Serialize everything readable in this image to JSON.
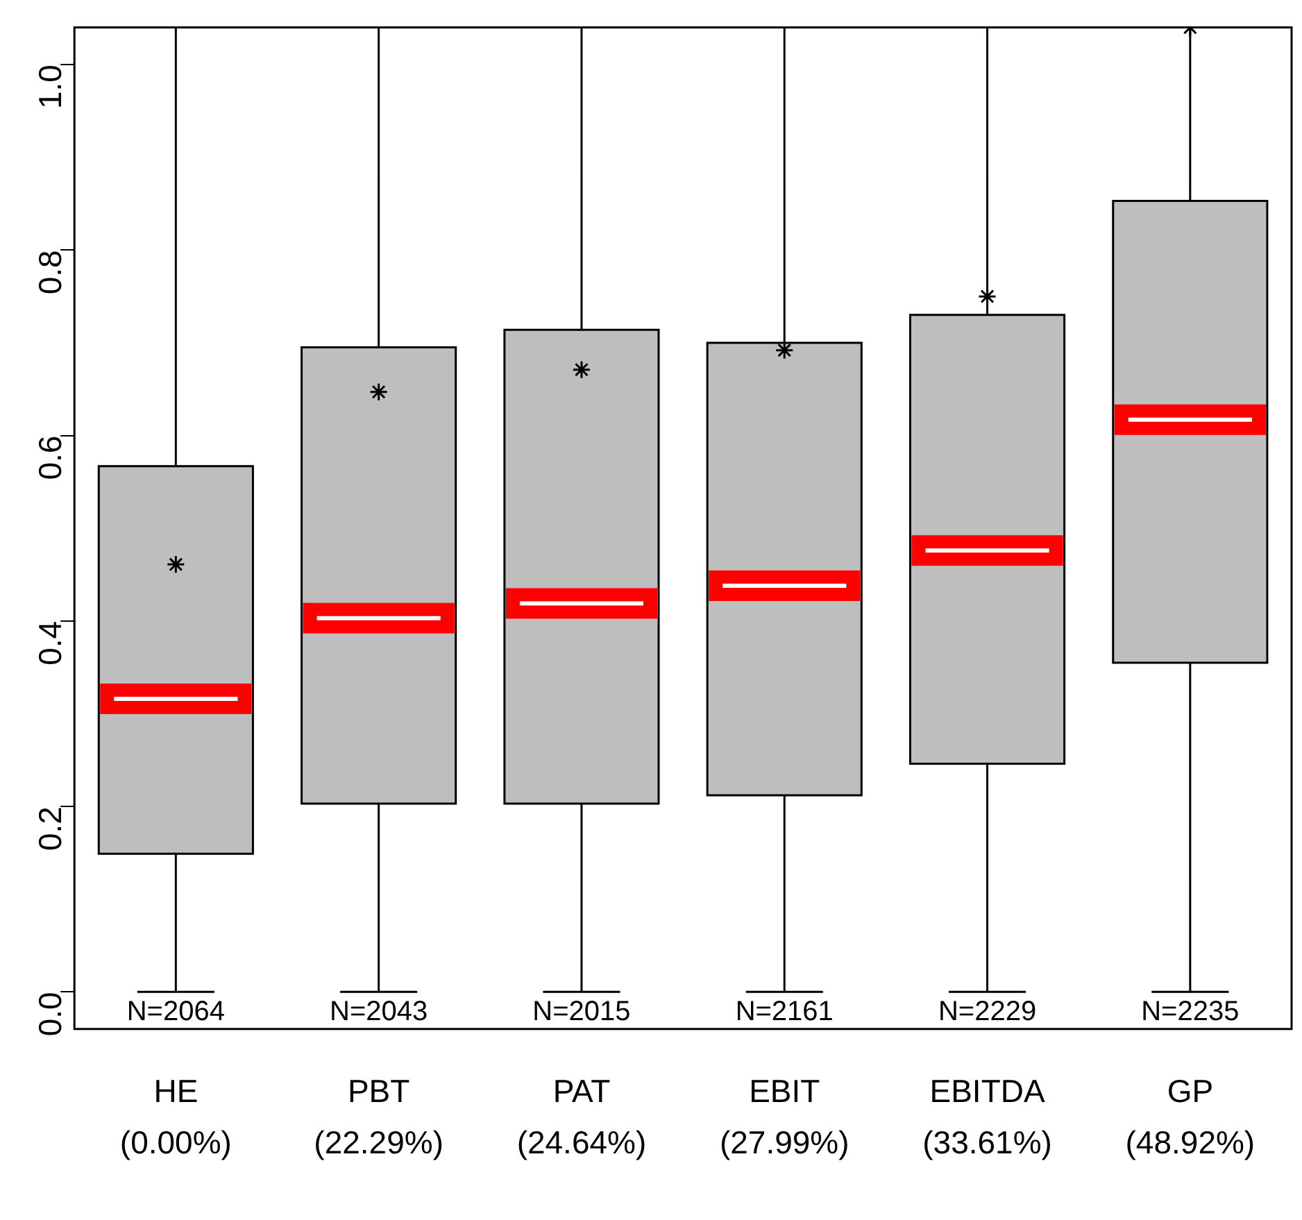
{
  "chart_data": {
    "type": "box",
    "categories": [
      "HE\n(0.00%)",
      "PBT\n(22.29%)",
      "PAT\n(24.64%)",
      "EBIT\n(27.99%)",
      "EBITDA\n(33.61%)",
      "GP\n(48.92%)"
    ],
    "boxes": [
      {
        "low": 0,
        "q1": 0.149,
        "median": 0.316,
        "q3": 0.567,
        "high": 1.04,
        "mean": 0.461
      },
      {
        "low": 0,
        "q1": 0.203,
        "median": 0.403,
        "q3": 0.695,
        "high": 1.04,
        "mean": 0.647
      },
      {
        "low": 0,
        "q1": 0.203,
        "median": 0.419,
        "q3": 0.714,
        "high": 1.04,
        "mean": 0.671
      },
      {
        "low": 0,
        "q1": 0.212,
        "median": 0.438,
        "q3": 0.7,
        "high": 1.04,
        "mean": 0.692
      },
      {
        "low": 0,
        "q1": 0.246,
        "median": 0.476,
        "q3": 0.73,
        "high": 1.04,
        "mean": 0.75
      },
      {
        "low": 0,
        "q1": 0.355,
        "median": 0.617,
        "q3": 0.853,
        "high": 1.04,
        "mean": 1.04
      }
    ],
    "color": "#bebebe",
    "marker": "star",
    "grid": false,
    "legend": false,
    "ylim": [
      -0.04,
      1.04
    ],
    "yticks": [
      {
        "value": 0,
        "label": "0.0"
      },
      0.2,
      0.4,
      0.6,
      0.8,
      {
        "value": 1,
        "label": "1.0"
      }
    ],
    "annotations": [
      "N=2064",
      "N=2043",
      "N=2015",
      "N=2161",
      "N=2229",
      "N=2235"
    ]
  }
}
